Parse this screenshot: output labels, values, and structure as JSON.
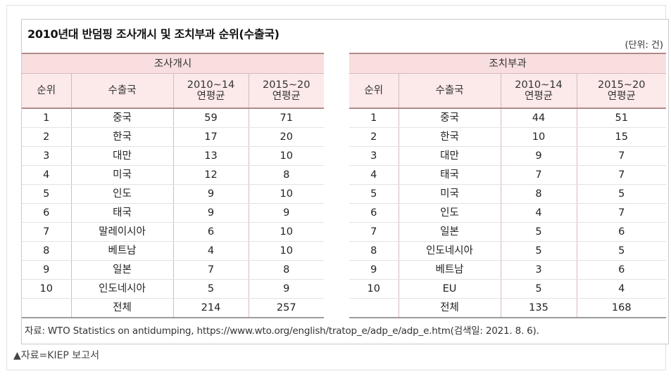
{
  "title": "2010년대 반덤핑 조사개시 및 조치부과 순위(수출국)",
  "unit": "(단위: 건)",
  "left_table": {
    "group": "조사개시",
    "headers": {
      "rank": "순위",
      "country": "수출국",
      "p1": "2010~14\n연평균",
      "p2": "2015~20\n연평균"
    },
    "rows": [
      {
        "rank": "1",
        "country": "중국",
        "p1": "59",
        "p2": "71"
      },
      {
        "rank": "2",
        "country": "한국",
        "p1": "17",
        "p2": "20"
      },
      {
        "rank": "3",
        "country": "대만",
        "p1": "13",
        "p2": "10"
      },
      {
        "rank": "4",
        "country": "미국",
        "p1": "12",
        "p2": "8"
      },
      {
        "rank": "5",
        "country": "인도",
        "p1": "9",
        "p2": "10"
      },
      {
        "rank": "6",
        "country": "태국",
        "p1": "9",
        "p2": "9"
      },
      {
        "rank": "7",
        "country": "말레이시아",
        "p1": "6",
        "p2": "10"
      },
      {
        "rank": "8",
        "country": "베트남",
        "p1": "4",
        "p2": "10"
      },
      {
        "rank": "9",
        "country": "일본",
        "p1": "7",
        "p2": "8"
      },
      {
        "rank": "10",
        "country": "인도네시아",
        "p1": "5",
        "p2": "9"
      }
    ],
    "total": {
      "label": "전체",
      "p1": "214",
      "p2": "257"
    }
  },
  "right_table": {
    "group": "조치부과",
    "headers": {
      "rank": "순위",
      "country": "수출국",
      "p1": "2010~14\n연평균",
      "p2": "2015~20\n연평균"
    },
    "rows": [
      {
        "rank": "1",
        "country": "중국",
        "p1": "44",
        "p2": "51"
      },
      {
        "rank": "2",
        "country": "한국",
        "p1": "10",
        "p2": "15"
      },
      {
        "rank": "3",
        "country": "대만",
        "p1": "9",
        "p2": "7"
      },
      {
        "rank": "4",
        "country": "태국",
        "p1": "7",
        "p2": "7"
      },
      {
        "rank": "5",
        "country": "미국",
        "p1": "8",
        "p2": "5"
      },
      {
        "rank": "6",
        "country": "인도",
        "p1": "4",
        "p2": "7"
      },
      {
        "rank": "7",
        "country": "일본",
        "p1": "5",
        "p2": "6"
      },
      {
        "rank": "8",
        "country": "인도네시아",
        "p1": "5",
        "p2": "5"
      },
      {
        "rank": "9",
        "country": "베트남",
        "p1": "3",
        "p2": "6"
      },
      {
        "rank": "10",
        "country": "EU",
        "p1": "5",
        "p2": "4"
      }
    ],
    "total": {
      "label": "전체",
      "p1": "135",
      "p2": "168"
    }
  },
  "source": "자료: WTO Statistics on antidumping, https://www.wto.org/english/tratop_e/adp_e/adp_e.htm(검색일: 2021. 8. 6).",
  "caption": "▲자료=KIEP 보고서"
}
